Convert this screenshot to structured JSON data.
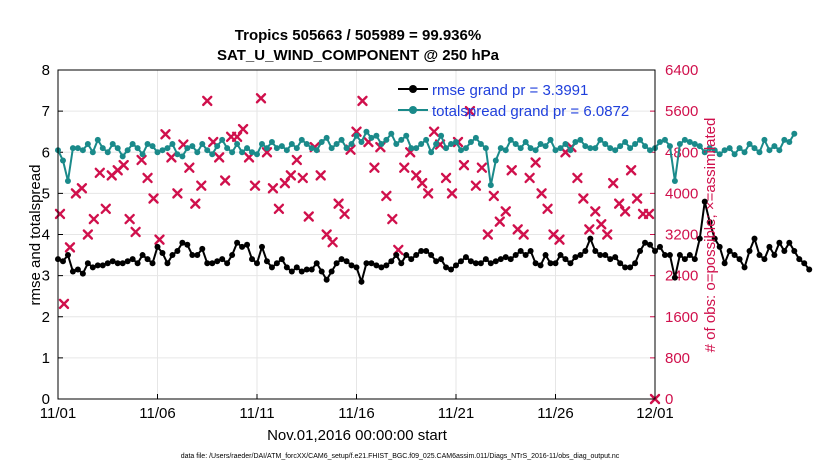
{
  "chart_data": {
    "type": "line",
    "title": "Tropics 505663 / 505989 = 99.936%",
    "subtitle": "SAT_U_WIND_COMPONENT @ 250 hPa",
    "xlabel": "Nov.01,2016 00:00:00 start",
    "ylabel_left": "rmse and totalspread",
    "ylabel_right": "# of obs: o=possible; ×=assimilated",
    "footer": "data file: /Users/raeder/DAI/ATM_forcXX/CAM6_setup/f.e21.FHIST_BGC.f09_025.CAM6assim.011/Diags_NTrS_2016-11/obs_diag_output.nc",
    "x_tick_labels": [
      "11/01",
      "11/06",
      "11/11",
      "11/16",
      "11/21",
      "11/26",
      "12/01"
    ],
    "x_tick_days": [
      0,
      5,
      10,
      15,
      20,
      25,
      30
    ],
    "xlim_days": [
      0,
      30
    ],
    "ylim_left": [
      0,
      8
    ],
    "y_ticks_left": [
      "0",
      "1",
      "2",
      "3",
      "4",
      "5",
      "6",
      "7",
      "8"
    ],
    "ylim_right": [
      0,
      6400
    ],
    "y_ticks_right": [
      "0",
      "800",
      "1600",
      "2400",
      "3200",
      "4000",
      "4800",
      "5600",
      "6400"
    ],
    "colors": {
      "rmse": "#000000",
      "spread": "#1a8a8a",
      "obs": "#d0104c",
      "legend_text": "#1f3fdc"
    },
    "step_days": 0.25,
    "series": [
      {
        "name": "rmse grand pr = 3.3991",
        "values": [
          3.4,
          3.35,
          3.5,
          3.1,
          3.15,
          3.05,
          3.3,
          3.2,
          3.25,
          3.25,
          3.3,
          3.35,
          3.3,
          3.3,
          3.35,
          3.4,
          3.3,
          3.5,
          3.4,
          3.3,
          3.7,
          3.55,
          3.3,
          3.5,
          3.6,
          3.8,
          3.75,
          3.5,
          3.5,
          3.65,
          3.3,
          3.3,
          3.35,
          3.4,
          3.3,
          3.5,
          3.8,
          3.7,
          3.75,
          3.4,
          3.3,
          3.7,
          3.35,
          3.2,
          3.3,
          3.4,
          3.2,
          3.1,
          3.2,
          3.1,
          3.15,
          3.15,
          3.3,
          3.1,
          2.9,
          3.1,
          3.3,
          3.4,
          3.35,
          3.25,
          3.2,
          2.85,
          3.3,
          3.3,
          3.25,
          3.2,
          3.25,
          3.35,
          3.5,
          3.3,
          3.5,
          3.4,
          3.5,
          3.6,
          3.6,
          3.5,
          3.35,
          3.4,
          3.2,
          3.15,
          3.25,
          3.35,
          3.45,
          3.35,
          3.3,
          3.3,
          3.4,
          3.3,
          3.35,
          3.4,
          3.45,
          3.4,
          3.5,
          3.6,
          3.5,
          3.6,
          3.3,
          3.25,
          3.5,
          3.3,
          3.3,
          3.5,
          3.4,
          3.3,
          3.45,
          3.5,
          3.6,
          3.9,
          3.6,
          3.5,
          3.5,
          3.4,
          3.45,
          3.3,
          3.2,
          3.2,
          3.3,
          3.6,
          3.8,
          3.75,
          3.6,
          3.7,
          3.5,
          3.5,
          2.95,
          3.5,
          3.4,
          3.5,
          3.4,
          3.9,
          4.8,
          4.3,
          3.9,
          3.7,
          3.3,
          3.6,
          3.5,
          3.4,
          3.2,
          3.6,
          3.9,
          3.5,
          3.4,
          3.7,
          3.5,
          3.8,
          3.6,
          3.8,
          3.6,
          3.4,
          3.3,
          3.15
        ],
        "color": "#000000"
      },
      {
        "name": "totalspread grand pr = 6.0872",
        "values": [
          6.05,
          5.8,
          5.3,
          6.1,
          6.1,
          6.05,
          6.2,
          6.0,
          6.3,
          6.1,
          6.0,
          6.2,
          6.1,
          5.9,
          6.05,
          6.2,
          6.1,
          5.95,
          6.2,
          6.15,
          6.0,
          6.05,
          6.1,
          6.2,
          5.95,
          5.9,
          6.1,
          6.15,
          6.0,
          6.2,
          6.05,
          5.95,
          6.15,
          6.3,
          6.1,
          6.0,
          6.2,
          6.0,
          6.1,
          6.0,
          5.95,
          6.2,
          6.1,
          6.25,
          6.1,
          6.15,
          6.05,
          6.2,
          6.1,
          6.3,
          6.2,
          6.1,
          6.05,
          6.25,
          6.35,
          6.1,
          6.2,
          6.3,
          6.1,
          6.2,
          6.4,
          6.25,
          6.5,
          6.35,
          6.4,
          6.2,
          6.3,
          6.45,
          6.2,
          6.3,
          6.4,
          6.1,
          6.1,
          6.2,
          6.3,
          6.0,
          6.2,
          6.4,
          6.1,
          6.2,
          6.25,
          6.05,
          6.1,
          6.25,
          6.35,
          6.2,
          6.1,
          5.2,
          5.8,
          6.1,
          6.05,
          6.3,
          6.2,
          6.1,
          6.25,
          6.1,
          6.05,
          6.2,
          6.15,
          6.3,
          6.05,
          6.1,
          6.2,
          6.05,
          6.25,
          6.3,
          6.15,
          6.1,
          6.1,
          6.3,
          6.2,
          6.1,
          6.05,
          6.15,
          6.25,
          6.1,
          6.2,
          6.3,
          6.15,
          6.05,
          6.1,
          6.25,
          6.3,
          6.15,
          5.3,
          6.2,
          6.3,
          6.25,
          6.2,
          6.15,
          6.0,
          6.1,
          6.05,
          5.95,
          6.05,
          6.1,
          5.95,
          6.1,
          6.0,
          6.2,
          6.1,
          6.0,
          6.3,
          6.05,
          6.15,
          6.05,
          6.3,
          6.25,
          6.45
        ],
        "color": "#1a8a8a"
      },
      {
        "name": "obs possible / assimilated",
        "axis": "right",
        "points": [
          [
            0.1,
            3600
          ],
          [
            0.3,
            1850
          ],
          [
            0.6,
            2950
          ],
          [
            0.9,
            4000
          ],
          [
            1.2,
            4100
          ],
          [
            1.5,
            3200
          ],
          [
            1.8,
            3500
          ],
          [
            2.1,
            4400
          ],
          [
            2.4,
            3700
          ],
          [
            2.7,
            4350
          ],
          [
            3.0,
            4450
          ],
          [
            3.3,
            4550
          ],
          [
            3.6,
            3500
          ],
          [
            3.9,
            3250
          ],
          [
            4.2,
            4650
          ],
          [
            4.5,
            4300
          ],
          [
            4.8,
            3900
          ],
          [
            5.1,
            3100
          ],
          [
            5.4,
            5150
          ],
          [
            5.7,
            4700
          ],
          [
            6.0,
            4000
          ],
          [
            6.3,
            4950
          ],
          [
            6.6,
            4500
          ],
          [
            6.9,
            3800
          ],
          [
            7.2,
            4150
          ],
          [
            7.5,
            5800
          ],
          [
            7.8,
            5000
          ],
          [
            8.1,
            4700
          ],
          [
            8.4,
            4250
          ],
          [
            8.7,
            5100
          ],
          [
            9.0,
            5100
          ],
          [
            9.3,
            5250
          ],
          [
            9.6,
            4700
          ],
          [
            9.9,
            4150
          ],
          [
            10.2,
            5850
          ],
          [
            10.5,
            4800
          ],
          [
            10.8,
            4100
          ],
          [
            11.1,
            3700
          ],
          [
            11.4,
            4200
          ],
          [
            11.7,
            4350
          ],
          [
            12.0,
            4650
          ],
          [
            12.3,
            4300
          ],
          [
            12.6,
            3550
          ],
          [
            12.9,
            4900
          ],
          [
            13.2,
            4350
          ],
          [
            13.5,
            3200
          ],
          [
            13.8,
            3050
          ],
          [
            14.1,
            3800
          ],
          [
            14.4,
            3600
          ],
          [
            14.7,
            4850
          ],
          [
            15.0,
            5200
          ],
          [
            15.3,
            5800
          ],
          [
            15.6,
            5000
          ],
          [
            15.9,
            4500
          ],
          [
            16.2,
            4900
          ],
          [
            16.5,
            3950
          ],
          [
            16.8,
            3500
          ],
          [
            17.1,
            2900
          ],
          [
            17.4,
            4500
          ],
          [
            17.7,
            4800
          ],
          [
            18.0,
            4350
          ],
          [
            18.3,
            4200
          ],
          [
            18.6,
            4000
          ],
          [
            18.9,
            5200
          ],
          [
            19.2,
            4950
          ],
          [
            19.5,
            4300
          ],
          [
            19.8,
            4000
          ],
          [
            20.1,
            5000
          ],
          [
            20.4,
            4550
          ],
          [
            20.7,
            5600
          ],
          [
            21.0,
            4150
          ],
          [
            21.3,
            4500
          ],
          [
            21.6,
            3200
          ],
          [
            21.9,
            3950
          ],
          [
            22.2,
            3450
          ],
          [
            22.5,
            3650
          ],
          [
            22.8,
            4450
          ],
          [
            23.1,
            3300
          ],
          [
            23.4,
            3200
          ],
          [
            23.7,
            4300
          ],
          [
            24.0,
            4600
          ],
          [
            24.3,
            4000
          ],
          [
            24.6,
            3700
          ],
          [
            24.9,
            3200
          ],
          [
            25.2,
            3100
          ],
          [
            25.5,
            4800
          ],
          [
            25.8,
            4900
          ],
          [
            26.1,
            4300
          ],
          [
            26.4,
            3900
          ],
          [
            26.7,
            3300
          ],
          [
            27.0,
            3650
          ],
          [
            27.3,
            3400
          ],
          [
            27.6,
            3200
          ],
          [
            27.9,
            4200
          ],
          [
            28.2,
            3800
          ],
          [
            28.5,
            3650
          ],
          [
            28.8,
            4450
          ],
          [
            29.1,
            3900
          ],
          [
            29.4,
            3600
          ],
          [
            29.7,
            3600
          ],
          [
            30.0,
            0
          ]
        ],
        "color": "#d0104c"
      }
    ]
  }
}
